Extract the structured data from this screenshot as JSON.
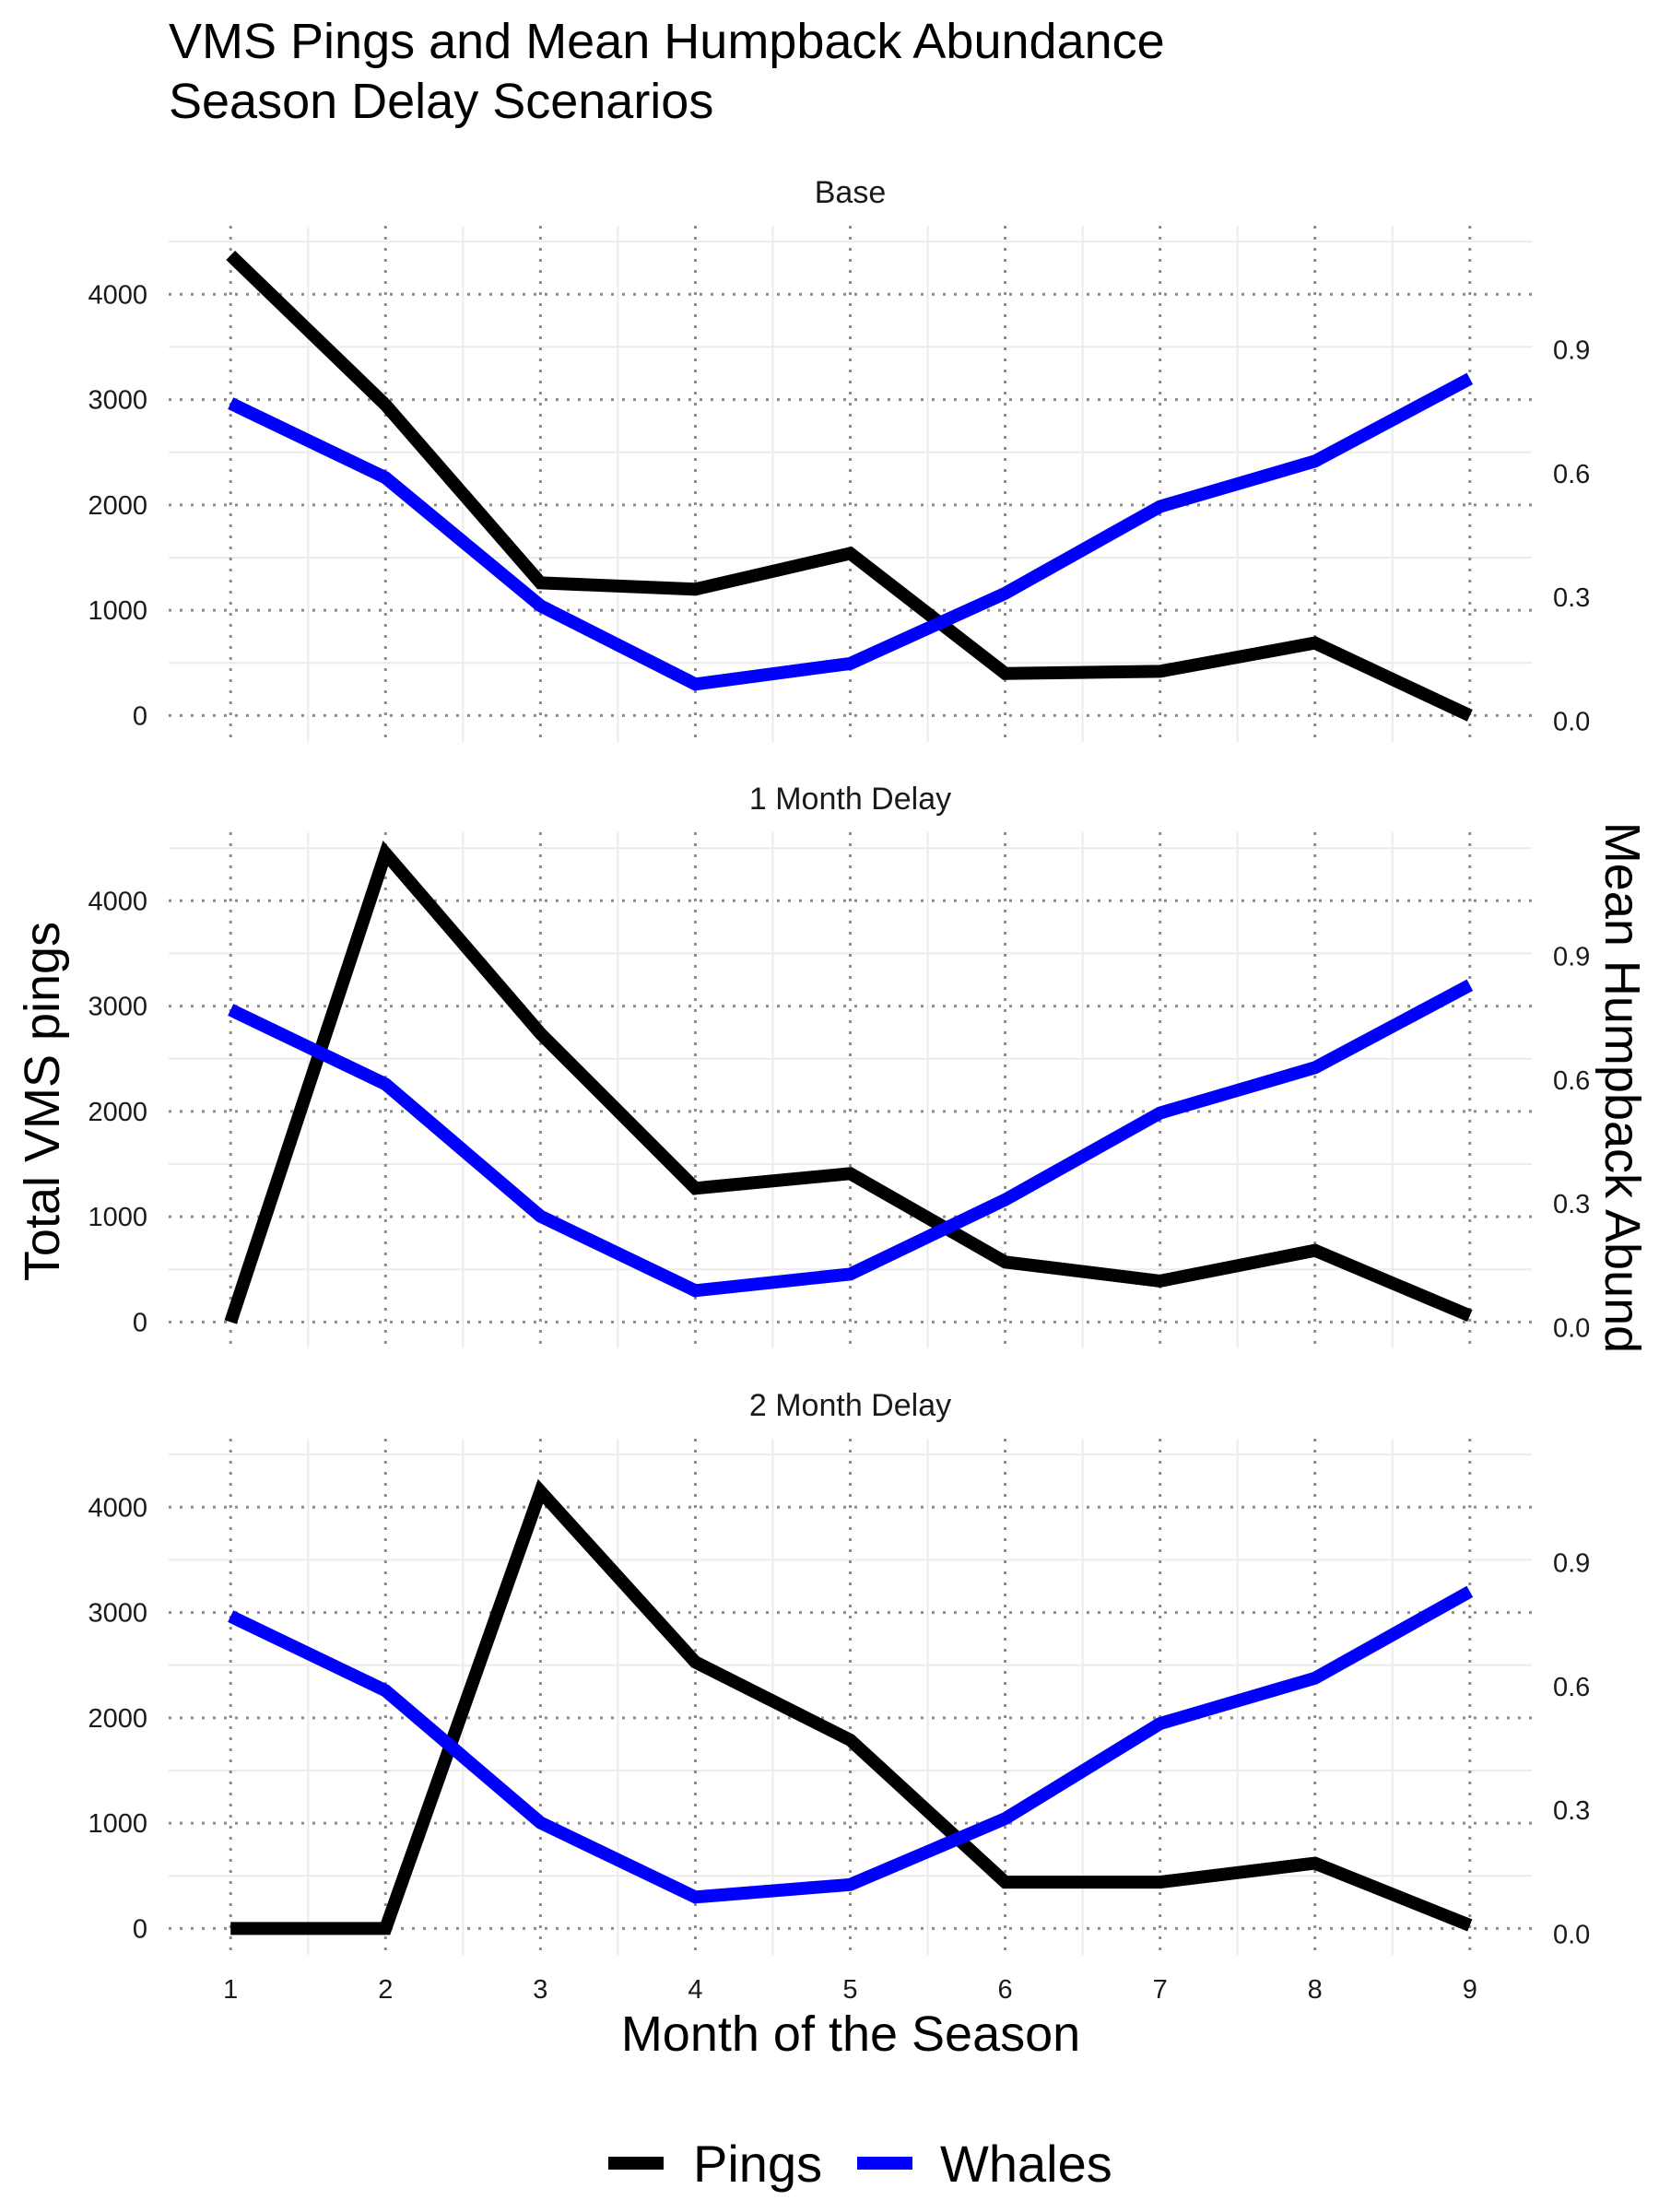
{
  "chart_data": {
    "type": "line",
    "title": "VMS Pings and Mean Humpback Abundance",
    "subtitle": "Season Delay Scenarios",
    "xlabel": "Month of the Season",
    "ylabel": "Total VMS pings",
    "y2label": "Mean Humpback Abund",
    "x": [
      1,
      2,
      3,
      4,
      5,
      6,
      7,
      8,
      9
    ],
    "xlim": [
      0.6,
      9.4
    ],
    "ylim": [
      -250,
      4650
    ],
    "y2lim": [
      -0.05,
      1.2
    ],
    "yticks": [
      0,
      1000,
      2000,
      3000,
      4000
    ],
    "y2ticks": [
      0.0,
      0.3,
      0.6,
      0.9
    ],
    "y2ticklabels": [
      "0.0",
      "0.3",
      "0.6",
      "0.9"
    ],
    "grid": true,
    "legend_position": "bottom",
    "legend": [
      {
        "name": "Pings",
        "color": "#000000"
      },
      {
        "name": "Whales",
        "color": "#0000ff"
      }
    ],
    "panels": [
      {
        "strip": "Base",
        "series": [
          {
            "name": "Pings",
            "axis": "left",
            "color": "#000000",
            "values": [
              4370,
              2950,
              1260,
              1200,
              1540,
              400,
              420,
              690,
              0
            ]
          },
          {
            "name": "Whales",
            "axis": "right",
            "color": "#0000ff",
            "values": [
              0.77,
              0.59,
              0.28,
              0.09,
              0.14,
              0.31,
              0.52,
              0.63,
              0.83
            ]
          }
        ]
      },
      {
        "strip": "1 Month Delay",
        "series": [
          {
            "name": "Pings",
            "axis": "left",
            "color": "#000000",
            "values": [
              0,
              4450,
              2740,
              1270,
              1410,
              570,
              390,
              680,
              60
            ]
          },
          {
            "name": "Whales",
            "axis": "right",
            "color": "#0000ff",
            "values": [
              0.77,
              0.59,
              0.27,
              0.09,
              0.13,
              0.31,
              0.52,
              0.63,
              0.83
            ]
          }
        ]
      },
      {
        "strip": "2 Month Delay",
        "series": [
          {
            "name": "Pings",
            "axis": "left",
            "color": "#000000",
            "values": [
              0,
              0,
              4150,
              2530,
              1790,
              440,
              440,
              620,
              30
            ]
          },
          {
            "name": "Whales",
            "axis": "right",
            "color": "#0000ff",
            "values": [
              0.77,
              0.59,
              0.27,
              0.09,
              0.12,
              0.28,
              0.51,
              0.62,
              0.83
            ]
          }
        ]
      }
    ]
  }
}
